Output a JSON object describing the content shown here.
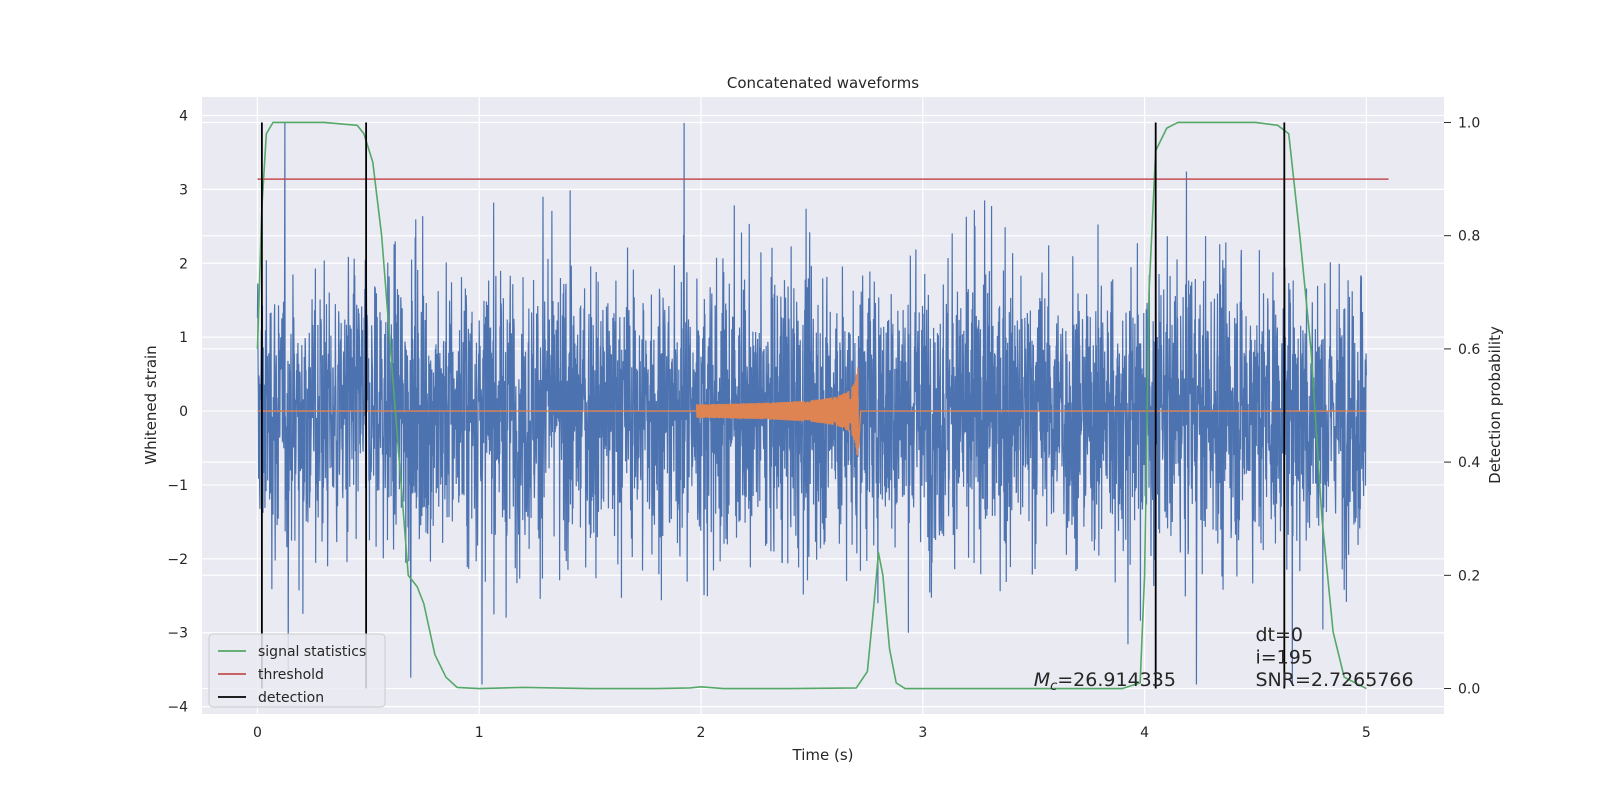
{
  "chart_data": {
    "type": "line",
    "title": "Concatenated waveforms",
    "xlabel": "Time (s)",
    "ylabel": "Whitened strain",
    "ylabel_right": "Detection probability",
    "xlim": [
      -0.25,
      5.35
    ],
    "ylim": [
      -4.1,
      4.25
    ],
    "ylim_right": [
      -0.045,
      1.045
    ],
    "xticks": [
      0,
      1,
      2,
      3,
      4,
      5
    ],
    "yticks": [
      -4,
      -3,
      -2,
      -1,
      0,
      1,
      2,
      3,
      4
    ],
    "yticks_right": [
      0.0,
      0.2,
      0.4,
      0.6,
      0.8,
      1.0
    ],
    "xtick_labels": [
      "0",
      "1",
      "2",
      "3",
      "4",
      "5"
    ],
    "ytick_labels": [
      "−4",
      "−3",
      "−2",
      "−1",
      "0",
      "1",
      "2",
      "3",
      "4"
    ],
    "ytick_right_labels": [
      "0.0",
      "0.2",
      "0.4",
      "0.6",
      "0.8",
      "1.0"
    ],
    "grid": true,
    "legend_placement": "lower-left",
    "noise": {
      "x_range": [
        0,
        5
      ],
      "amplitude_std": 0.95,
      "peak_max": 3.9,
      "peak_min": -3.7,
      "color": "#4c72b0"
    },
    "chirp": {
      "x_start": 1.98,
      "x_merger": 2.71,
      "x_end": 2.72,
      "peak_amplitude": 0.6,
      "color": "#dd8452"
    },
    "series": [
      {
        "name": "signal statistics",
        "color": "#55a868",
        "axis": "right",
        "x": [
          0.0,
          0.02,
          0.04,
          0.07,
          0.12,
          0.3,
          0.45,
          0.48,
          0.52,
          0.56,
          0.6,
          0.64,
          0.68,
          0.72,
          0.75,
          0.8,
          0.85,
          0.9,
          1.0,
          1.2,
          1.5,
          1.8,
          1.95,
          2.0,
          2.1,
          2.4,
          2.7,
          2.75,
          2.78,
          2.8,
          2.82,
          2.85,
          2.88,
          2.92,
          3.0,
          3.5,
          3.9,
          3.98,
          4.0,
          4.02,
          4.05,
          4.1,
          4.15,
          4.2,
          4.3,
          4.5,
          4.6,
          4.65,
          4.7,
          4.75,
          4.8,
          4.85,
          4.9,
          5.0
        ],
        "y": [
          0.6,
          0.85,
          0.98,
          1.0,
          1.0,
          1.0,
          0.995,
          0.98,
          0.93,
          0.8,
          0.6,
          0.4,
          0.2,
          0.18,
          0.15,
          0.06,
          0.02,
          0.002,
          0.0,
          0.002,
          0.0,
          0.0,
          0.001,
          0.003,
          0.0,
          0.0,
          0.001,
          0.03,
          0.15,
          0.24,
          0.2,
          0.07,
          0.01,
          0.0,
          0.0,
          0.0,
          0.0,
          0.01,
          0.2,
          0.7,
          0.95,
          0.99,
          1.0,
          1.0,
          1.0,
          1.0,
          0.995,
          0.98,
          0.8,
          0.6,
          0.3,
          0.1,
          0.02,
          0.0
        ]
      },
      {
        "name": "threshold",
        "color": "#c44e52",
        "axis": "right",
        "x": [
          0.0,
          5.1
        ],
        "y": [
          0.9,
          0.9
        ]
      },
      {
        "name": "detection",
        "color": "#000000",
        "axis": "right",
        "segments_x": [
          0.02,
          0.49,
          4.05,
          4.63
        ],
        "y": [
          0.0,
          1.0
        ]
      }
    ],
    "annotations": [
      {
        "id": "mc",
        "text": "=26.914335",
        "symbol": "M",
        "subscript": "c",
        "x": 3.5,
        "y_right": 0.015
      },
      {
        "id": "dt",
        "text": "dt=0",
        "x": 4.5,
        "y_right": 0.095
      },
      {
        "id": "i",
        "text": "i=195",
        "x": 4.5,
        "y_right": 0.055
      },
      {
        "id": "snr",
        "text": "SNR=2.7265766",
        "x": 4.5,
        "y_right": 0.015
      }
    ]
  }
}
